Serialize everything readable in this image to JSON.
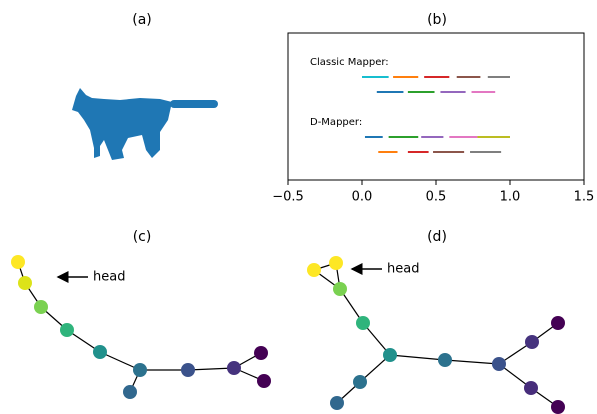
{
  "chart_data": [
    {
      "type": "image",
      "title": "(a)"
    },
    {
      "type": "interval",
      "title": "(b)",
      "xlim": [
        -0.5,
        1.5
      ],
      "xticks": [
        {
          "value": -0.5,
          "label": "−0.5"
        },
        {
          "value": 0,
          "label": "0.0"
        },
        0.5,
        {
          "value": 1,
          "label": "1.0"
        },
        1.5
      ],
      "groups": [
        {
          "label": "Classic Mapper:",
          "rows": [
            [
              {
                "start": 0.0,
                "end": 0.18,
                "color": "#17becf"
              },
              {
                "start": 0.21,
                "end": 0.38,
                "color": "#ff7f0e"
              },
              {
                "start": 0.42,
                "end": 0.59,
                "color": "#d62728"
              },
              {
                "start": 0.64,
                "end": 0.8,
                "color": "#8c564b"
              },
              {
                "start": 0.85,
                "end": 1.0,
                "color": "#7f7f7f"
              }
            ],
            [
              {
                "start": 0.1,
                "end": 0.28,
                "color": "#1f77b4"
              },
              {
                "start": 0.31,
                "end": 0.49,
                "color": "#2ca02c"
              },
              {
                "start": 0.53,
                "end": 0.7,
                "color": "#9467bd"
              },
              {
                "start": 0.74,
                "end": 0.9,
                "color": "#e377c2"
              }
            ]
          ]
        },
        {
          "label": "D-Mapper:",
          "rows": [
            [
              {
                "start": 0.02,
                "end": 0.14,
                "color": "#1f77b4"
              },
              {
                "start": 0.18,
                "end": 0.38,
                "color": "#2ca02c"
              },
              {
                "start": 0.4,
                "end": 0.55,
                "color": "#9467bd"
              },
              {
                "start": 0.59,
                "end": 0.78,
                "color": "#e377c2"
              },
              {
                "start": 0.78,
                "end": 1.0,
                "color": "#bcbd22"
              }
            ],
            [
              {
                "start": 0.11,
                "end": 0.24,
                "color": "#ff7f0e"
              },
              {
                "start": 0.31,
                "end": 0.45,
                "color": "#d62728"
              },
              {
                "start": 0.48,
                "end": 0.69,
                "color": "#8c564b"
              },
              {
                "start": 0.73,
                "end": 0.94,
                "color": "#7f7f7f"
              }
            ]
          ]
        }
      ]
    },
    {
      "type": "graph",
      "title": "(c)",
      "annotation": "head",
      "node_colors": [
        "#fde725",
        "#dce319",
        "#7ad151",
        "#2fb47c",
        "#21918c",
        "#2c728e",
        "#31688e",
        "#3b528b",
        "#46337e",
        "#440154",
        "#440154"
      ]
    },
    {
      "type": "graph",
      "title": "(d)",
      "annotation": "head",
      "node_colors": [
        "#fde725",
        "#fde725",
        "#7ad151",
        "#2fb47c",
        "#21918c",
        "#2c728e",
        "#31688e",
        "#2c728e",
        "#3b528b",
        "#46337e",
        "#440154",
        "#472d7b",
        "#440154"
      ]
    }
  ]
}
